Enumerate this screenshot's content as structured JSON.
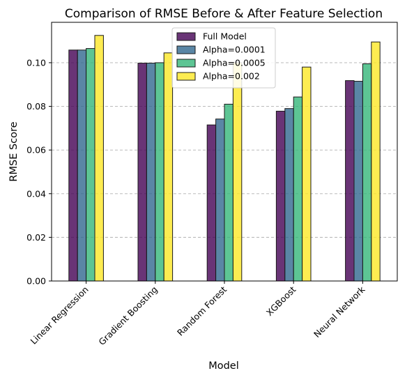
{
  "chart_data": {
    "type": "bar",
    "title": "Comparison of RMSE Before & After Feature Selection",
    "xlabel": "Model",
    "ylabel": "RMSE Score",
    "categories": [
      "Linear Regression",
      "Gradient Boosting",
      "Random Forest",
      "XGBoost",
      "Neural Network"
    ],
    "series": [
      {
        "name": "Full Model",
        "color": "#440154",
        "values": [
          0.1058,
          0.0998,
          0.0715,
          0.0778,
          0.0918
        ]
      },
      {
        "name": "Alpha=0.0001",
        "color": "#31688e",
        "values": [
          0.1058,
          0.0998,
          0.0742,
          0.079,
          0.0915
        ]
      },
      {
        "name": "Alpha=0.0005",
        "color": "#35b779",
        "values": [
          0.1065,
          0.1,
          0.081,
          0.0843,
          0.0995
        ]
      },
      {
        "name": "Alpha=0.002",
        "color": "#fde725",
        "values": [
          0.1125,
          0.1045,
          0.1,
          0.098,
          0.1095
        ]
      }
    ],
    "ylim": [
      0,
      0.1185
    ],
    "yticks": [
      "0.00",
      "0.02",
      "0.04",
      "0.06",
      "0.08",
      "0.10"
    ],
    "ytick_values": [
      0,
      0.02,
      0.04,
      0.06,
      0.08,
      0.1
    ],
    "grid": "y-dashed",
    "legend_position": "top-center",
    "bar_opacity": 0.8
  }
}
